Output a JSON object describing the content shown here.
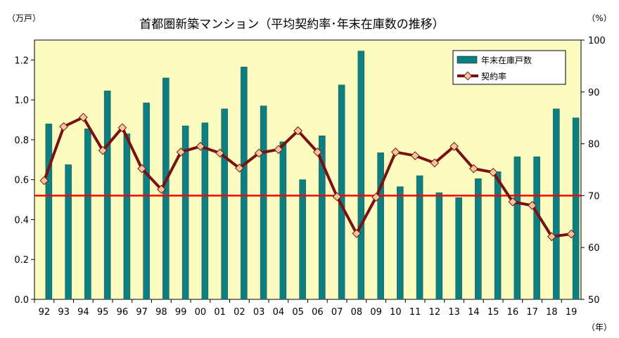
{
  "chart_data": {
    "type": "bar+line",
    "title": "首都圏新築マンション（平均契約率･年末在庫数の推移）",
    "left_unit": "（万戸）",
    "right_unit": "（%）",
    "x_unit": "（年）",
    "categories": [
      "92",
      "93",
      "94",
      "95",
      "96",
      "97",
      "98",
      "99",
      "00",
      "01",
      "02",
      "03",
      "04",
      "05",
      "06",
      "07",
      "08",
      "09",
      "10",
      "11",
      "12",
      "13",
      "14",
      "15",
      "16",
      "17",
      "18",
      "19"
    ],
    "series": [
      {
        "name": "年末在庫戸数",
        "type": "bar",
        "axis": "left",
        "color": "#0d7f80",
        "values": [
          0.88,
          0.675,
          0.855,
          1.045,
          0.83,
          0.985,
          1.11,
          0.87,
          0.885,
          0.955,
          1.165,
          0.97,
          0.79,
          0.6,
          0.82,
          1.075,
          1.245,
          0.735,
          0.565,
          0.62,
          0.535,
          0.51,
          0.605,
          0.64,
          0.715,
          0.715,
          0.955,
          0.91
        ]
      },
      {
        "name": "契約率",
        "type": "line",
        "axis": "right",
        "color": "#7a1010",
        "marker_color": "#f7c79b",
        "values": [
          72.9,
          83.3,
          85.1,
          78.7,
          83.1,
          75.2,
          71.2,
          78.4,
          79.5,
          78.2,
          75.3,
          78.2,
          78.9,
          82.5,
          78.4,
          69.8,
          62.7,
          69.7,
          78.4,
          77.7,
          76.3,
          79.5,
          75.2,
          74.5,
          68.8,
          68.1,
          62.1,
          62.6
        ]
      }
    ],
    "reference_line": {
      "value": 70,
      "axis": "right",
      "color": "#ff0000"
    },
    "y_left": {
      "min": 0.0,
      "max": 1.3,
      "ticks": [
        "0.0",
        "0.2",
        "0.4",
        "0.6",
        "0.8",
        "1.0",
        "1.2"
      ]
    },
    "y_right": {
      "min": 50,
      "max": 100,
      "ticks": [
        "50",
        "60",
        "70",
        "80",
        "90",
        "100"
      ]
    },
    "plot_background": "#fcfcc0",
    "grid": false,
    "legend_position": "top-right"
  }
}
